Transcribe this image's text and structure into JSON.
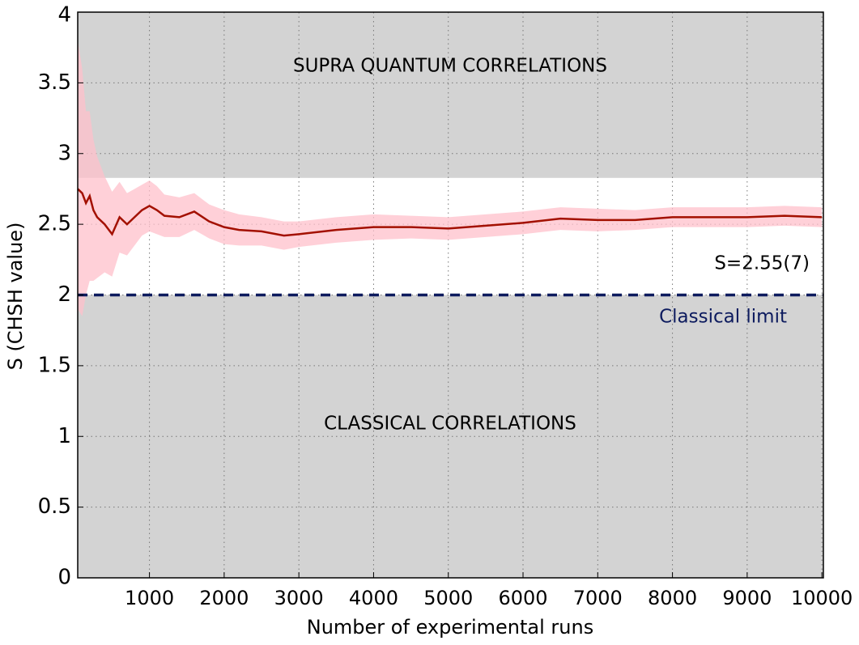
{
  "chart_data": {
    "type": "line",
    "xlabel": "Number of experimental runs",
    "ylabel": "S (CHSH value)",
    "x": [
      40,
      100,
      150,
      200,
      250,
      300,
      400,
      500,
      600,
      700,
      800,
      900,
      1000,
      1100,
      1200,
      1400,
      1600,
      1800,
      2000,
      2200,
      2500,
      2800,
      3000,
      3500,
      4000,
      4500,
      5000,
      5500,
      6000,
      6500,
      7000,
      7500,
      8000,
      8500,
      9000,
      9500,
      10000
    ],
    "series": [
      {
        "color": "#a31000",
        "values": [
          2.75,
          2.72,
          2.65,
          2.7,
          2.6,
          2.55,
          2.5,
          2.43,
          2.55,
          2.5,
          2.55,
          2.6,
          2.63,
          2.6,
          2.56,
          2.55,
          2.59,
          2.52,
          2.48,
          2.46,
          2.45,
          2.42,
          2.43,
          2.46,
          2.48,
          2.48,
          2.47,
          2.49,
          2.51,
          2.54,
          2.53,
          2.53,
          2.55,
          2.55,
          2.55,
          2.56,
          2.55
        ]
      }
    ],
    "band": {
      "color": "#ffc0cb",
      "lower": [
        1.9,
        1.85,
        2.0,
        2.1,
        2.1,
        2.12,
        2.16,
        2.13,
        2.3,
        2.28,
        2.35,
        2.42,
        2.45,
        2.43,
        2.41,
        2.41,
        2.46,
        2.4,
        2.36,
        2.35,
        2.35,
        2.32,
        2.34,
        2.37,
        2.39,
        2.4,
        2.39,
        2.41,
        2.43,
        2.46,
        2.45,
        2.46,
        2.48,
        2.48,
        2.48,
        2.49,
        2.48
      ],
      "upper": [
        3.8,
        3.6,
        3.3,
        3.3,
        3.1,
        2.98,
        2.84,
        2.73,
        2.8,
        2.72,
        2.75,
        2.78,
        2.81,
        2.77,
        2.71,
        2.69,
        2.72,
        2.64,
        2.6,
        2.57,
        2.55,
        2.52,
        2.52,
        2.55,
        2.57,
        2.56,
        2.55,
        2.57,
        2.59,
        2.62,
        2.61,
        2.6,
        2.62,
        2.62,
        2.62,
        2.63,
        2.62
      ]
    },
    "regions": [
      [
        2.828,
        4
      ],
      [
        0,
        2
      ]
    ],
    "region_color": "#d3d3d3",
    "classical_limit": 2,
    "limit_color": "#0d1b5e",
    "annotations": [
      "SUPRA QUANTUM CORRELATIONS",
      "CLASSICAL CORRELATIONS",
      "S=2.55(7)",
      "Classical limit"
    ],
    "xlim": [
      40,
      10020
    ],
    "ylim": [
      0,
      4
    ],
    "xticks": [
      1000,
      2000,
      3000,
      4000,
      5000,
      6000,
      7000,
      8000,
      9000,
      10000
    ],
    "yticks": [
      0,
      0.5,
      1,
      1.5,
      2,
      2.5,
      3,
      3.5,
      4
    ],
    "grid": true
  }
}
